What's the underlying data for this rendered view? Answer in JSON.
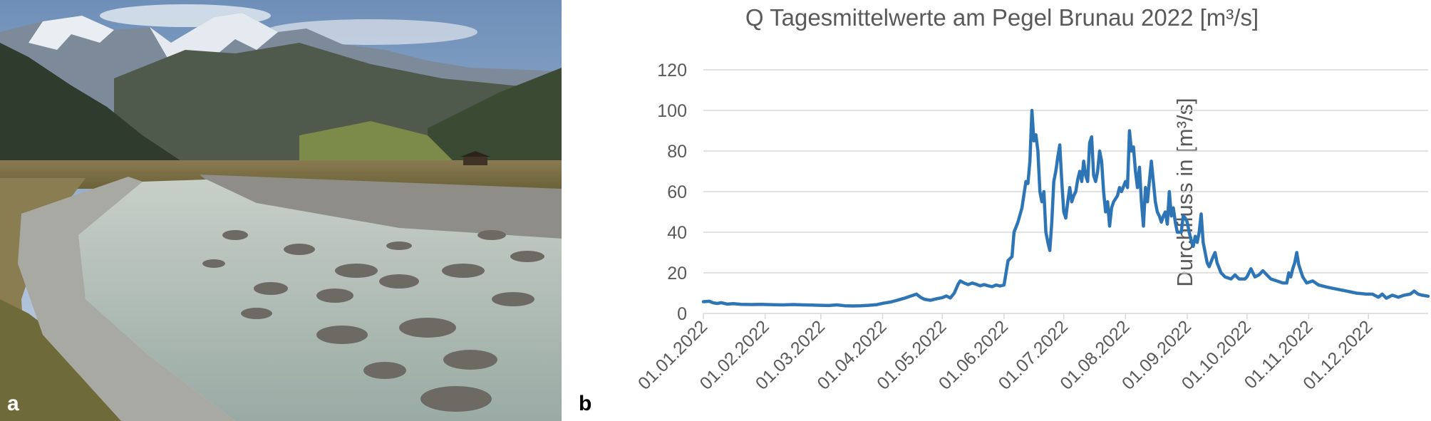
{
  "panels": {
    "a": "a",
    "b": "b"
  },
  "photo": {
    "description": ""
  },
  "colors": {
    "series": "#2E75B6",
    "grid": "#D9D9D9",
    "text": "#595959"
  },
  "chart_data": {
    "type": "line",
    "title": "Q Tagesmittelwerte am Pegel Brunau 2022 [m³/s]",
    "ylabel": "Durchfluss in [m³/s]",
    "xlabel": "",
    "ylim": [
      0,
      120
    ],
    "yticks": [
      0,
      20,
      40,
      60,
      80,
      100,
      120
    ],
    "grid": true,
    "legend": "none",
    "xlim": [
      "2022-01-01",
      "2022-12-31"
    ],
    "xticks": [
      {
        "date": "2022-01-01",
        "label": "01.01.2022"
      },
      {
        "date": "2022-02-01",
        "label": "01.02.2022"
      },
      {
        "date": "2022-03-01",
        "label": "01.03.2022"
      },
      {
        "date": "2022-04-01",
        "label": "01.04.2022"
      },
      {
        "date": "2022-05-01",
        "label": "01.05.2022"
      },
      {
        "date": "2022-06-01",
        "label": "01.06.2022"
      },
      {
        "date": "2022-07-01",
        "label": "01.07.2022"
      },
      {
        "date": "2022-08-01",
        "label": "01.08.2022"
      },
      {
        "date": "2022-09-01",
        "label": "01.09.2022"
      },
      {
        "date": "2022-10-01",
        "label": "01.10.2022"
      },
      {
        "date": "2022-11-01",
        "label": "01.11.2022"
      },
      {
        "date": "2022-12-01",
        "label": "01.12.2022"
      }
    ],
    "series": [
      {
        "values": [
          [
            "2022-01-01",
            5.8
          ],
          [
            "2022-01-04",
            6.0
          ],
          [
            "2022-01-06",
            5.2
          ],
          [
            "2022-01-08",
            4.9
          ],
          [
            "2022-01-10",
            5.3
          ],
          [
            "2022-01-13",
            4.6
          ],
          [
            "2022-01-16",
            4.8
          ],
          [
            "2022-01-20",
            4.5
          ],
          [
            "2022-01-25",
            4.4
          ],
          [
            "2022-01-30",
            4.5
          ],
          [
            "2022-02-05",
            4.3
          ],
          [
            "2022-02-10",
            4.2
          ],
          [
            "2022-02-15",
            4.4
          ],
          [
            "2022-02-20",
            4.2
          ],
          [
            "2022-02-25",
            4.1
          ],
          [
            "2022-03-01",
            4.0
          ],
          [
            "2022-03-05",
            3.9
          ],
          [
            "2022-03-09",
            4.2
          ],
          [
            "2022-03-13",
            3.8
          ],
          [
            "2022-03-17",
            3.7
          ],
          [
            "2022-03-21",
            3.8
          ],
          [
            "2022-03-25",
            4.0
          ],
          [
            "2022-03-29",
            4.3
          ],
          [
            "2022-04-01",
            5.0
          ],
          [
            "2022-04-05",
            5.6
          ],
          [
            "2022-04-08",
            6.4
          ],
          [
            "2022-04-12",
            7.5
          ],
          [
            "2022-04-15",
            8.5
          ],
          [
            "2022-04-18",
            9.5
          ],
          [
            "2022-04-20",
            8.0
          ],
          [
            "2022-04-22",
            7.0
          ],
          [
            "2022-04-25",
            6.5
          ],
          [
            "2022-04-28",
            7.2
          ],
          [
            "2022-05-01",
            7.8
          ],
          [
            "2022-05-03",
            8.6
          ],
          [
            "2022-05-05",
            7.6
          ],
          [
            "2022-05-07",
            10.0
          ],
          [
            "2022-05-09",
            14.5
          ],
          [
            "2022-05-10",
            16.0
          ],
          [
            "2022-05-12",
            15.0
          ],
          [
            "2022-05-14",
            14.2
          ],
          [
            "2022-05-16",
            15.0
          ],
          [
            "2022-05-18",
            14.4
          ],
          [
            "2022-05-20",
            13.6
          ],
          [
            "2022-05-22",
            14.2
          ],
          [
            "2022-05-24",
            13.6
          ],
          [
            "2022-05-26",
            13.2
          ],
          [
            "2022-05-28",
            14.0
          ],
          [
            "2022-05-30",
            13.5
          ],
          [
            "2022-06-01",
            14.0
          ],
          [
            "2022-06-03",
            26.0
          ],
          [
            "2022-06-05",
            28.0
          ],
          [
            "2022-06-06",
            40.0
          ],
          [
            "2022-06-08",
            45.0
          ],
          [
            "2022-06-10",
            52.0
          ],
          [
            "2022-06-12",
            65.0
          ],
          [
            "2022-06-13",
            64.0
          ],
          [
            "2022-06-14",
            75.0
          ],
          [
            "2022-06-15",
            100.0
          ],
          [
            "2022-06-16",
            85.0
          ],
          [
            "2022-06-17",
            88.0
          ],
          [
            "2022-06-18",
            80.0
          ],
          [
            "2022-06-19",
            60.0
          ],
          [
            "2022-06-20",
            55.0
          ],
          [
            "2022-06-21",
            60.0
          ],
          [
            "2022-06-22",
            40.0
          ],
          [
            "2022-06-23",
            35.0
          ],
          [
            "2022-06-24",
            31.0
          ],
          [
            "2022-06-25",
            45.0
          ],
          [
            "2022-06-26",
            65.0
          ],
          [
            "2022-06-27",
            70.0
          ],
          [
            "2022-06-28",
            77.0
          ],
          [
            "2022-06-29",
            83.0
          ],
          [
            "2022-06-30",
            65.0
          ],
          [
            "2022-07-01",
            50.0
          ],
          [
            "2022-07-02",
            47.0
          ],
          [
            "2022-07-03",
            55.0
          ],
          [
            "2022-07-04",
            62.0
          ],
          [
            "2022-07-05",
            55.0
          ],
          [
            "2022-07-06",
            58.0
          ],
          [
            "2022-07-07",
            60.0
          ],
          [
            "2022-07-08",
            66.0
          ],
          [
            "2022-07-09",
            70.0
          ],
          [
            "2022-07-10",
            65.0
          ],
          [
            "2022-07-11",
            75.0
          ],
          [
            "2022-07-12",
            68.0
          ],
          [
            "2022-07-13",
            65.0
          ],
          [
            "2022-07-14",
            84.0
          ],
          [
            "2022-07-15",
            87.0
          ],
          [
            "2022-07-16",
            68.0
          ],
          [
            "2022-07-17",
            65.0
          ],
          [
            "2022-07-18",
            70.0
          ],
          [
            "2022-07-19",
            80.0
          ],
          [
            "2022-07-20",
            75.0
          ],
          [
            "2022-07-21",
            60.0
          ],
          [
            "2022-07-22",
            50.0
          ],
          [
            "2022-07-23",
            55.0
          ],
          [
            "2022-07-24",
            43.0
          ],
          [
            "2022-07-25",
            52.0
          ],
          [
            "2022-07-26",
            55.0
          ],
          [
            "2022-07-28",
            58.0
          ],
          [
            "2022-07-29",
            62.0
          ],
          [
            "2022-07-30",
            60.0
          ],
          [
            "2022-08-01",
            65.0
          ],
          [
            "2022-08-02",
            62.0
          ],
          [
            "2022-08-03",
            90.0
          ],
          [
            "2022-08-04",
            80.0
          ],
          [
            "2022-08-05",
            82.0
          ],
          [
            "2022-08-06",
            70.0
          ],
          [
            "2022-08-07",
            62.0
          ],
          [
            "2022-08-08",
            72.0
          ],
          [
            "2022-08-09",
            55.0
          ],
          [
            "2022-08-10",
            43.0
          ],
          [
            "2022-08-11",
            62.0
          ],
          [
            "2022-08-12",
            55.0
          ],
          [
            "2022-08-13",
            65.0
          ],
          [
            "2022-08-14",
            75.0
          ],
          [
            "2022-08-15",
            65.0
          ],
          [
            "2022-08-16",
            55.0
          ],
          [
            "2022-08-17",
            50.0
          ],
          [
            "2022-08-18",
            48.0
          ],
          [
            "2022-08-19",
            45.0
          ],
          [
            "2022-08-20",
            48.0
          ],
          [
            "2022-08-21",
            50.0
          ],
          [
            "2022-08-22",
            44.0
          ],
          [
            "2022-08-23",
            60.0
          ],
          [
            "2022-08-24",
            48.0
          ],
          [
            "2022-08-25",
            52.0
          ],
          [
            "2022-08-26",
            45.0
          ],
          [
            "2022-08-27",
            40.0
          ],
          [
            "2022-08-28",
            40.0
          ],
          [
            "2022-08-29",
            40.0
          ],
          [
            "2022-08-30",
            48.0
          ],
          [
            "2022-08-31",
            47.0
          ],
          [
            "2022-09-01",
            45.0
          ],
          [
            "2022-09-02",
            40.0
          ],
          [
            "2022-09-03",
            36.0
          ],
          [
            "2022-09-04",
            33.0
          ],
          [
            "2022-09-05",
            38.0
          ],
          [
            "2022-09-06",
            35.0
          ],
          [
            "2022-09-07",
            40.0
          ],
          [
            "2022-09-08",
            49.0
          ],
          [
            "2022-09-09",
            35.0
          ],
          [
            "2022-09-10",
            30.0
          ],
          [
            "2022-09-11",
            25.0
          ],
          [
            "2022-09-12",
            23.0
          ],
          [
            "2022-09-14",
            28.0
          ],
          [
            "2022-09-15",
            30.0
          ],
          [
            "2022-09-16",
            25.0
          ],
          [
            "2022-09-18",
            20.0
          ],
          [
            "2022-09-20",
            18.0
          ],
          [
            "2022-09-23",
            17.0
          ],
          [
            "2022-09-25",
            19.0
          ],
          [
            "2022-09-27",
            17.0
          ],
          [
            "2022-09-30",
            17.0
          ],
          [
            "2022-10-01",
            18.0
          ],
          [
            "2022-10-03",
            22.0
          ],
          [
            "2022-10-05",
            18.0
          ],
          [
            "2022-10-07",
            19.0
          ],
          [
            "2022-10-09",
            21.0
          ],
          [
            "2022-10-11",
            19.0
          ],
          [
            "2022-10-13",
            17.0
          ],
          [
            "2022-10-16",
            16.0
          ],
          [
            "2022-10-19",
            15.0
          ],
          [
            "2022-10-21",
            15.0
          ],
          [
            "2022-10-22",
            20.0
          ],
          [
            "2022-10-23",
            18.0
          ],
          [
            "2022-10-24",
            22.0
          ],
          [
            "2022-10-25",
            25.0
          ],
          [
            "2022-10-26",
            30.0
          ],
          [
            "2022-10-27",
            24.0
          ],
          [
            "2022-10-29",
            18.0
          ],
          [
            "2022-10-31",
            15.0
          ],
          [
            "2022-11-03",
            16.0
          ],
          [
            "2022-11-06",
            14.0
          ],
          [
            "2022-11-10",
            13.0
          ],
          [
            "2022-11-15",
            12.0
          ],
          [
            "2022-11-20",
            11.0
          ],
          [
            "2022-11-25",
            10.0
          ],
          [
            "2022-11-30",
            9.5
          ],
          [
            "2022-12-03",
            9.5
          ],
          [
            "2022-12-06",
            8.0
          ],
          [
            "2022-12-08",
            9.5
          ],
          [
            "2022-12-10",
            7.5
          ],
          [
            "2022-12-13",
            9.0
          ],
          [
            "2022-12-16",
            8.0
          ],
          [
            "2022-12-19",
            9.0
          ],
          [
            "2022-12-22",
            9.5
          ],
          [
            "2022-12-24",
            11.0
          ],
          [
            "2022-12-26",
            9.5
          ],
          [
            "2022-12-28",
            9.0
          ],
          [
            "2022-12-31",
            8.5
          ]
        ]
      }
    ]
  }
}
